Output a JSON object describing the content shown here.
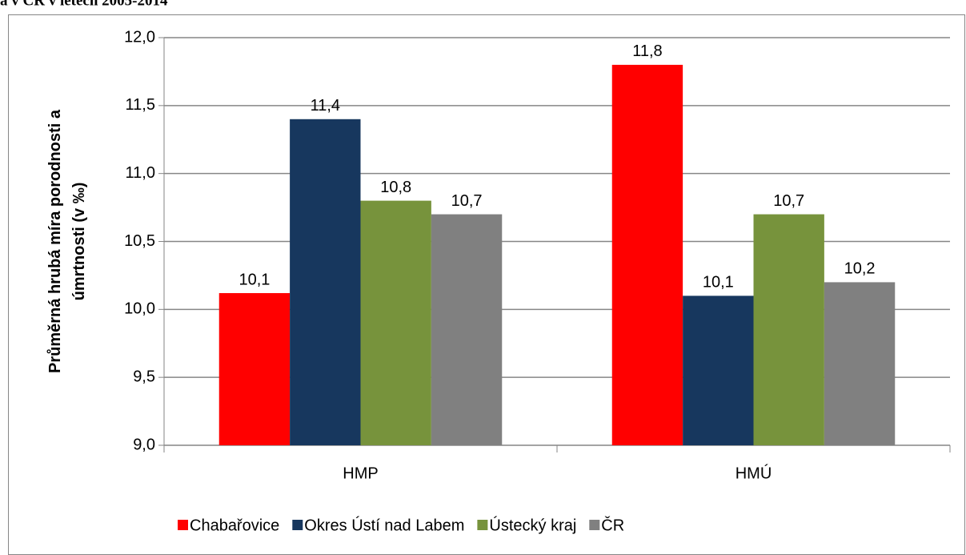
{
  "chart_data": {
    "type": "bar",
    "title": "a v ČR v letech 2005-2014",
    "ylabel": [
      "Průměrná hrubá míra porodnosti a",
      "úmrtnosti (v ‰)"
    ],
    "categories": [
      "HMP",
      "HMÚ"
    ],
    "series": [
      {
        "name": "Chabařovice",
        "color": "#ff0000",
        "values": [
          10.12,
          11.8
        ],
        "value_labels": [
          "10,1",
          "11,8"
        ]
      },
      {
        "name": "Okres Ústí nad Labem",
        "color": "#17375e",
        "values": [
          11.4,
          10.1
        ],
        "value_labels": [
          "11,4",
          "10,1"
        ]
      },
      {
        "name": "Ústecký kraj",
        "color": "#77933c",
        "values": [
          10.8,
          10.7
        ],
        "value_labels": [
          "10,8",
          "10,7"
        ]
      },
      {
        "name": "ČR",
        "color": "#808080",
        "values": [
          10.7,
          10.2
        ],
        "value_labels": [
          "10,7",
          "10,2"
        ]
      }
    ],
    "ylim": [
      9,
      12
    ],
    "yticks": [
      {
        "value": 9,
        "label": "9,0"
      },
      {
        "value": 9.5,
        "label": "9,5"
      },
      {
        "value": 10,
        "label": "10,0"
      },
      {
        "value": 10.5,
        "label": "10,5"
      },
      {
        "value": 11,
        "label": "11,0"
      },
      {
        "value": 11.5,
        "label": "11,5"
      },
      {
        "value": 12,
        "label": "12,0"
      }
    ],
    "grid": true,
    "legend": "bottom"
  }
}
